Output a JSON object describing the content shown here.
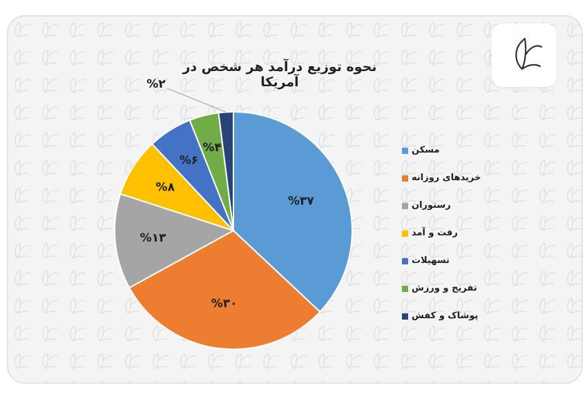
{
  "chart_data": {
    "type": "pie",
    "title": "نحوه توزیع درآمد هر شخص در آمریکا",
    "slices": [
      {
        "name": "مسکن",
        "value": 37,
        "label": "%۳۷",
        "color": "#5b9bd5"
      },
      {
        "name": "خریدهای روزانه",
        "value": 30,
        "label": "%۳۰",
        "color": "#ed7d31"
      },
      {
        "name": "رستوران",
        "value": 13,
        "label": "%۱۳",
        "color": "#a5a5a5"
      },
      {
        "name": "رفت و آمد",
        "value": 8,
        "label": "%۸",
        "color": "#ffc000"
      },
      {
        "name": "تسهیلات",
        "value": 6,
        "label": "%۶",
        "color": "#4472c4"
      },
      {
        "name": "تفریح و ورزش",
        "value": 4,
        "label": "%۴",
        "color": "#70ad47"
      },
      {
        "name": "پوشاک و کفش",
        "value": 2,
        "label": "%۲",
        "color": "#264478"
      }
    ],
    "legend_position": "right"
  },
  "logo": {
    "icon": "bird-logo-icon",
    "color": "#333333"
  }
}
